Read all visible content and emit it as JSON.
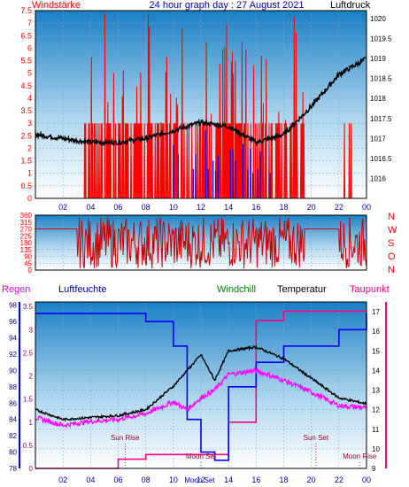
{
  "header": {
    "left_title": "Windstärke",
    "center_title": "24 hour graph day : 27 August 2021",
    "right_title": "Luftdruck"
  },
  "colors": {
    "red": "#ff0000",
    "blue": "#0000ff",
    "black": "#000000",
    "magenta": "#ff00ff",
    "darkred": "#cc0000",
    "green": "#008000",
    "navy": "#0000aa",
    "pink": "#ff0080",
    "sky_top": "#1a7fc4",
    "sky_bottom": "#ffffff"
  },
  "x_ticks": [
    "02",
    "04",
    "06",
    "08",
    "10",
    "12",
    "14",
    "16",
    "18",
    "20",
    "22",
    "00"
  ],
  "chart_data": [
    {
      "type": "line",
      "panel": "wind_pressure",
      "left_axis": {
        "label": "Windstärke",
        "ylim": [
          0,
          7.5
        ],
        "ticks": [
          "0",
          "0.5",
          "1",
          "1.5",
          "2",
          "2.5",
          "3",
          "3.5",
          "4",
          "4.5",
          "5",
          "5.5",
          "6",
          "6.5",
          "7",
          "7.5"
        ]
      },
      "right_axis": {
        "label": "Luftdruck",
        "ylim": [
          1015.5,
          1020.2
        ],
        "ticks": [
          "1016",
          "1016.5",
          "1017",
          "1017.5",
          "1018",
          "1018.5",
          "1019",
          "1019.5",
          "1020"
        ]
      },
      "x": [
        "00:00",
        "02:00",
        "04:00",
        "06:00",
        "08:00",
        "10:00",
        "12:00",
        "14:00",
        "16:00",
        "18:00",
        "20:00",
        "22:00",
        "24:00"
      ],
      "series": [
        {
          "name": "Luftdruck",
          "color": "#000000",
          "values": [
            1017.1,
            1017.0,
            1016.9,
            1016.9,
            1017.0,
            1017.2,
            1017.4,
            1017.3,
            1016.9,
            1017.1,
            1017.8,
            1018.6,
            1019.0
          ]
        }
      ],
      "wind_activity": {
        "start": "03:30",
        "end": "19:30",
        "calm_level": 0,
        "gust_peak": 7.5
      }
    },
    {
      "type": "scatter",
      "panel": "wind_direction",
      "y_axis": {
        "ylim": [
          0,
          360
        ],
        "ticks": [
          "0",
          "45",
          "90",
          "135",
          "180",
          "225",
          "270",
          "315",
          "360"
        ]
      },
      "right_labels": [
        "N",
        "W",
        "S",
        "O",
        "N"
      ],
      "series": [
        {
          "name": "",
          "color": "#cc0000",
          "segments": [
            {
              "from": "00:00",
              "to": "03:00",
              "value": 270
            },
            {
              "from": "03:00",
              "to": "19:30",
              "value": "varies"
            },
            {
              "from": "19:30",
              "to": "22:00",
              "value": 270
            },
            {
              "from": "22:00",
              "to": "24:00",
              "value": "varies"
            }
          ]
        }
      ]
    },
    {
      "type": "line",
      "panel": "temperature",
      "legend": [
        "Regen",
        "Luftfeuchte",
        "Windchill",
        "Temperatur",
        "Taupunkt"
      ],
      "left_axis_regen": {
        "label": "Regen",
        "ylim": [
          0,
          3.6
        ],
        "ticks": [
          "0",
          "0.5",
          "1",
          "1.5",
          "2",
          "2.5",
          "3",
          "3.5"
        ]
      },
      "left_axis_humidity": {
        "label": "Luftfeuchte",
        "ylim": [
          78,
          98.4
        ],
        "ticks": [
          "78",
          "80",
          "82",
          "84",
          "86",
          "88",
          "90",
          "92",
          "94",
          "96",
          "98"
        ]
      },
      "right_axis": {
        "label": "Temperatur",
        "ylim": [
          9,
          17.5
        ],
        "ticks": [
          "9",
          "10",
          "11",
          "12",
          "13",
          "14",
          "15",
          "16",
          "17"
        ]
      },
      "x": [
        "00:00",
        "02:00",
        "04:00",
        "06:00",
        "08:00",
        "10:00",
        "11:00",
        "12:00",
        "13:00",
        "14:00",
        "16:00",
        "18:00",
        "20:00",
        "22:00",
        "24:00"
      ],
      "series": [
        {
          "name": "Temperatur",
          "color": "#000000",
          "values": [
            12.0,
            11.5,
            11.6,
            11.7,
            12.0,
            13.2,
            14.0,
            14.8,
            13.5,
            15.0,
            15.2,
            14.6,
            13.6,
            12.6,
            12.3
          ]
        },
        {
          "name": "Taupunkt",
          "color": "#ff00ff",
          "values": [
            11.6,
            11.2,
            11.4,
            11.5,
            11.8,
            12.4,
            12.0,
            12.6,
            13.0,
            13.8,
            14.0,
            13.5,
            12.9,
            12.2,
            12.1
          ]
        },
        {
          "name": "Luftfeuchte",
          "color": "#0000ff",
          "values": [
            97,
            97,
            97,
            97,
            96,
            93,
            84,
            80,
            79,
            88,
            91,
            93,
            93,
            95,
            97
          ]
        },
        {
          "name": "Regen",
          "color": "#ff0080",
          "values": [
            0,
            0,
            0,
            0.2,
            0.3,
            0.3,
            0.3,
            0.3,
            0.3,
            1.0,
            3.2,
            3.4,
            3.4,
            3.4,
            3.4
          ]
        }
      ],
      "annotations": [
        {
          "text": "Sun Rise",
          "time": "06:30"
        },
        {
          "text": "Moon Set",
          "time": "12:00"
        },
        {
          "text": "Sun Set",
          "time": "20:20"
        },
        {
          "text": "Moon Rise",
          "time": "23:30"
        }
      ],
      "bottom_label": "Moon Set"
    }
  ]
}
